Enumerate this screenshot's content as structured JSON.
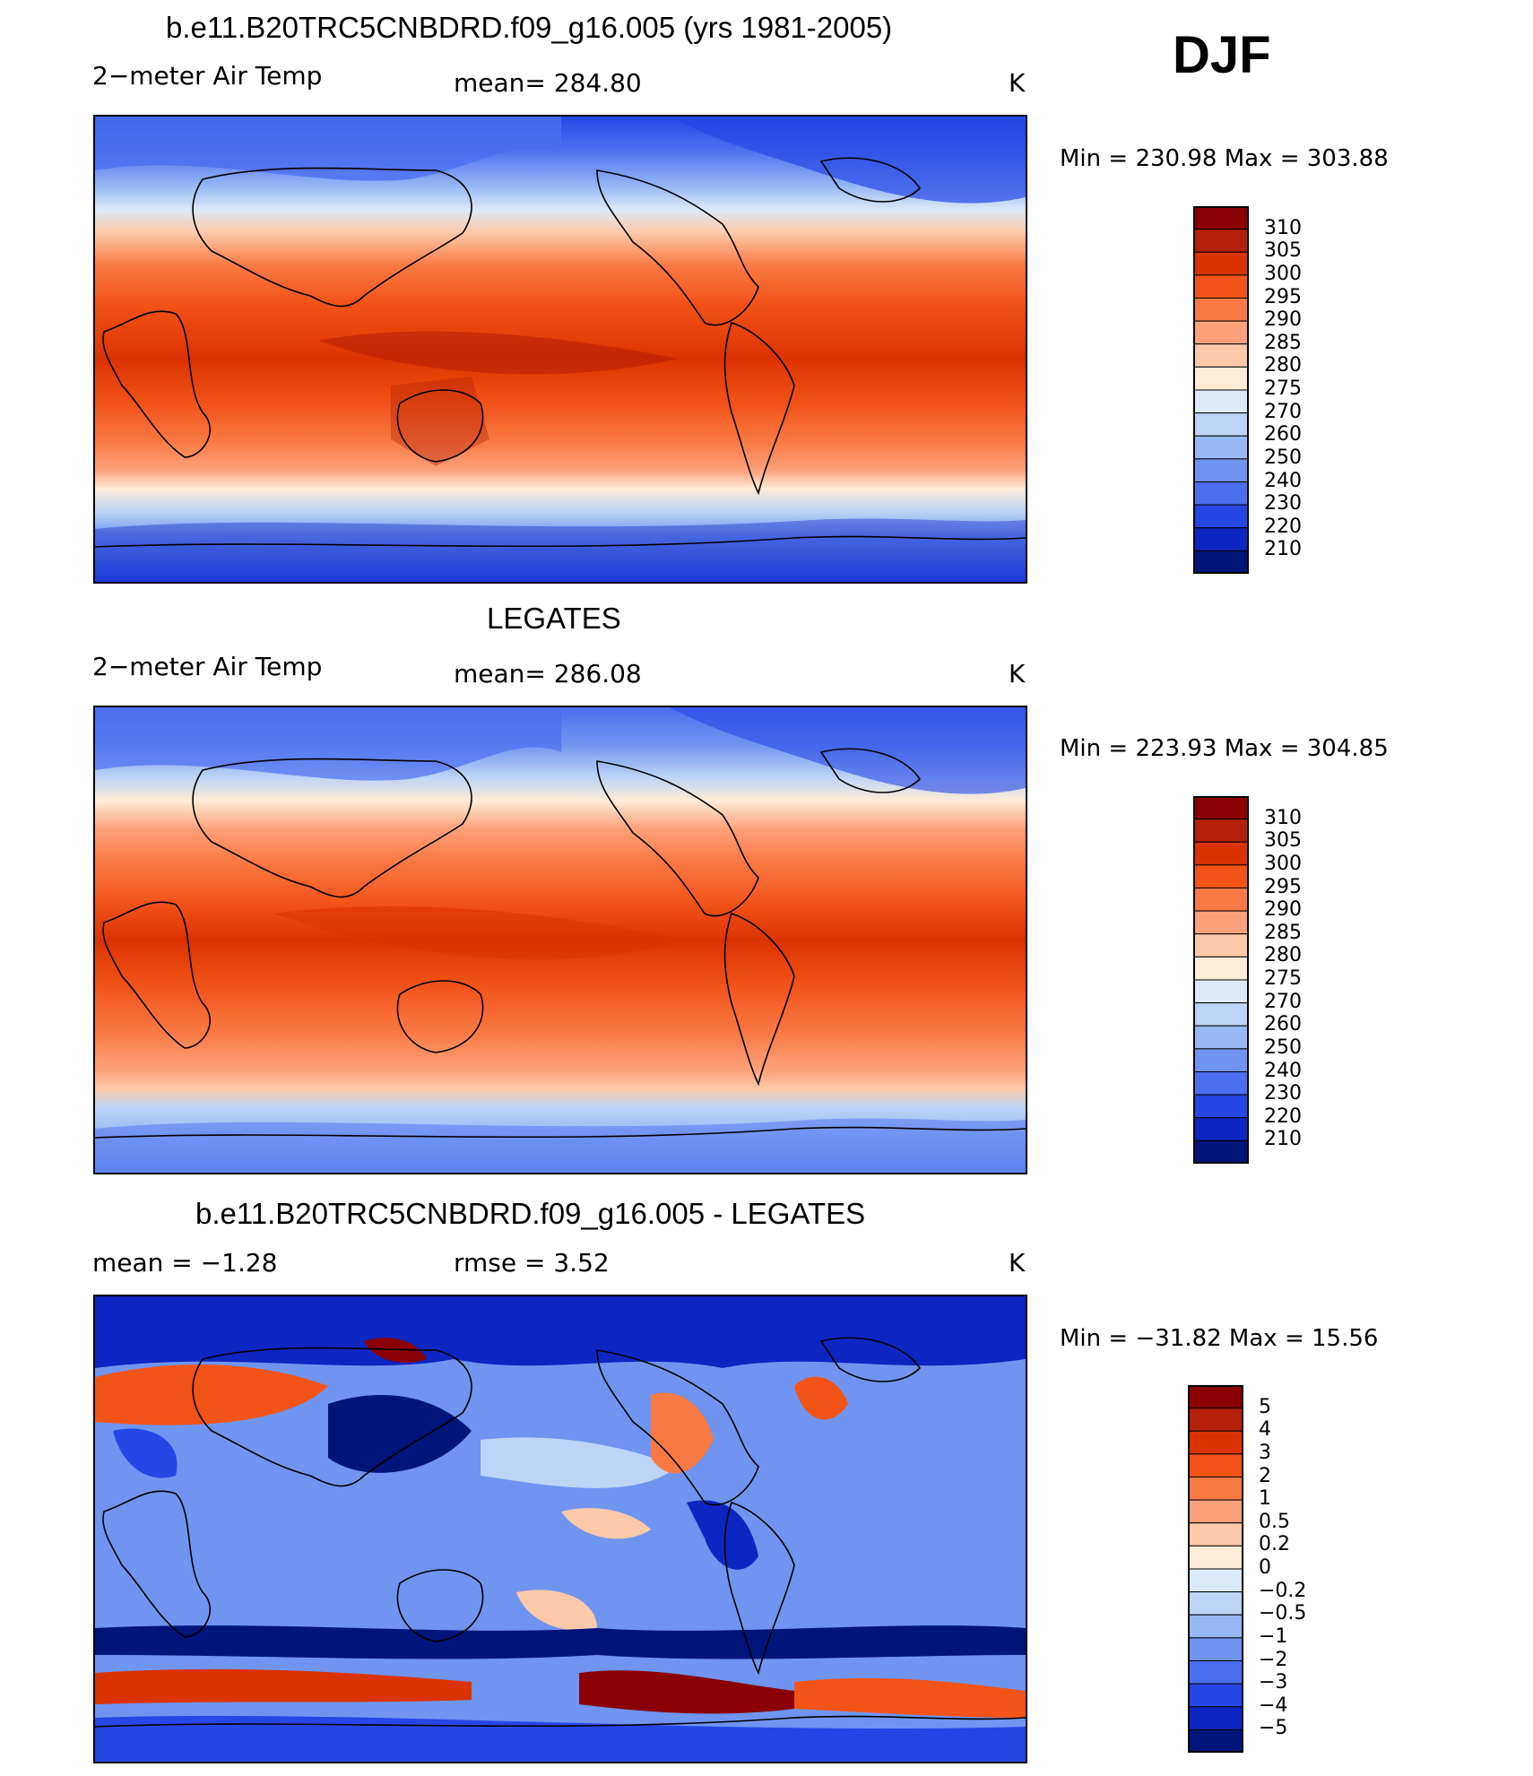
{
  "season_label": "DJF",
  "panels": [
    {
      "title": "b.e11.B20TRC5CNBDRD.f09_g16.005 (yrs 1981-2005)",
      "left_label": "2−meter Air Temp",
      "center_label": "mean=  284.80",
      "unit": "K",
      "minmax": "Min  =  230.98  Max  =  303.88"
    },
    {
      "title": "LEGATES",
      "left_label": "2−meter Air Temp",
      "center_label": "mean=  286.08",
      "unit": "K",
      "minmax": "Min  =  223.93  Max  =  304.85"
    },
    {
      "title": "b.e11.B20TRC5CNBDRD.f09_g16.005 - LEGATES",
      "left_label": "mean  =    −1.28",
      "center_label": "rmse  =     3.52",
      "unit": "K",
      "minmax": "Min  =  −31.82  Max  =    15.56"
    }
  ],
  "colorbars": {
    "temperature": {
      "labels": [
        "310",
        "305",
        "300",
        "295",
        "290",
        "285",
        "280",
        "275",
        "270",
        "260",
        "250",
        "240",
        "230",
        "220",
        "210"
      ],
      "colors": [
        "#8b0000",
        "#b52008",
        "#db3300",
        "#f25418",
        "#fa7a45",
        "#fca27a",
        "#fdc9a8",
        "#fdecd8",
        "#dce9f7",
        "#bcd4f6",
        "#96b8f5",
        "#6f95f0",
        "#4a6ff0",
        "#2547e6",
        "#0c26c2",
        "#00157a"
      ]
    },
    "difference": {
      "labels": [
        "5",
        "4",
        "3",
        "2",
        "1",
        "0.5",
        "0.2",
        "0",
        "−0.2",
        "−0.5",
        "−1",
        "−2",
        "−3",
        "−4",
        "−5"
      ],
      "colors": [
        "#8b0000",
        "#b52008",
        "#db3300",
        "#f25418",
        "#fa7a45",
        "#fca27a",
        "#fdc9a8",
        "#fdecd8",
        "#dce9f7",
        "#bcd4f6",
        "#96b8f5",
        "#6f95f0",
        "#4a6ff0",
        "#2547e6",
        "#0c26c2",
        "#00157a"
      ]
    }
  },
  "chart_data": [
    {
      "type": "heatmap",
      "title": "b.e11.B20TRC5CNBDRD.f09_g16.005 (yrs 1981-2005)",
      "variable": "2−meter Air Temp",
      "units": "K",
      "mean": 284.8,
      "min": 230.98,
      "max": 303.88,
      "contour_levels": [
        210,
        220,
        230,
        240,
        250,
        260,
        270,
        275,
        280,
        285,
        290,
        295,
        300,
        305,
        310
      ]
    },
    {
      "type": "heatmap",
      "title": "LEGATES",
      "variable": "2−meter Air Temp",
      "units": "K",
      "mean": 286.08,
      "min": 223.93,
      "max": 304.85,
      "contour_levels": [
        210,
        220,
        230,
        240,
        250,
        260,
        270,
        275,
        280,
        285,
        290,
        295,
        300,
        305,
        310
      ]
    },
    {
      "type": "heatmap",
      "title": "b.e11.B20TRC5CNBDRD.f09_g16.005 - LEGATES",
      "units": "K",
      "mean": -1.28,
      "rmse": 3.52,
      "min": -31.82,
      "max": 15.56,
      "contour_levels": [
        -5,
        -4,
        -3,
        -2,
        -1,
        -0.5,
        -0.2,
        0,
        0.2,
        0.5,
        1,
        2,
        3,
        4,
        5
      ]
    }
  ]
}
